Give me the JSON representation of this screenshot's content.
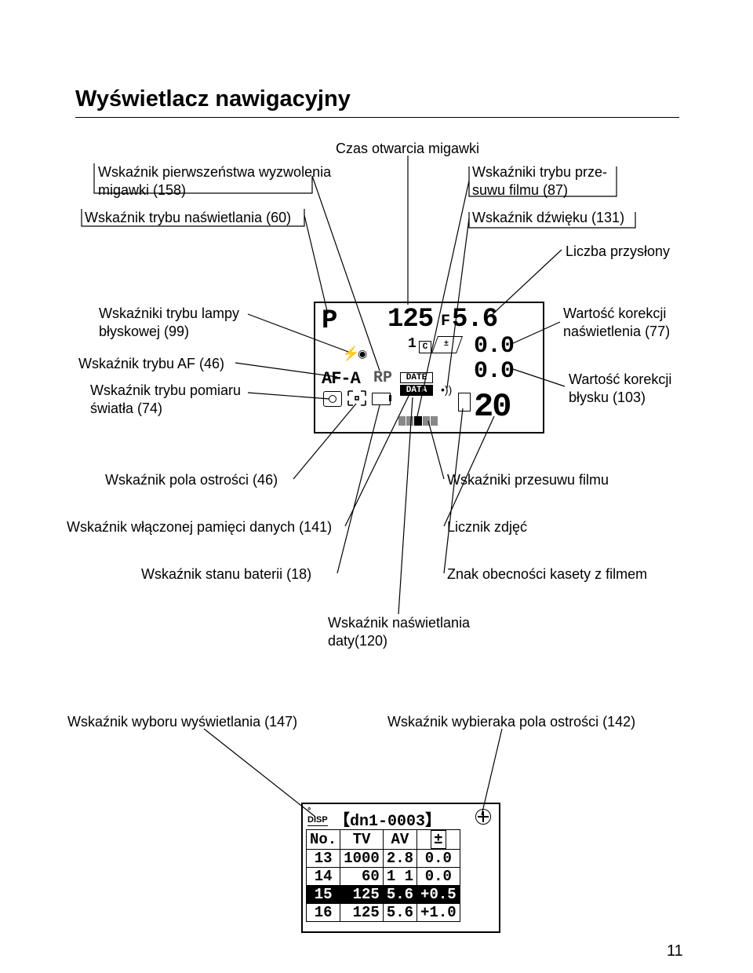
{
  "title": "Wyświetlacz nawigacyjny",
  "page_number": "11",
  "upper_labels": {
    "shutter_time": "Czas otwarcia migawki",
    "shutter_priority": "Wskaźnik pierwszeństwa wyzwolenia\nmigawki (158)",
    "exposure_mode": "Wskaźnik trybu naświetlania (60)",
    "film_advance": "Wskaźniki trybu prze-\nsuwu filmu (87)",
    "sound": "Wskaźnik dźwięku (131)",
    "aperture": "Liczba przysłony"
  },
  "left_labels": {
    "flash_mode": "Wskaźniki trybu lampy\nbłyskowej (99)",
    "af_mode": "Wskaźnik trybu AF (46)",
    "metering_mode": "Wskaźnik trybu pomiaru\nświatła (74)"
  },
  "right_labels": {
    "exp_corr": "Wartość korekcji\nnaświetlenia (77)",
    "flash_corr": "Wartość korekcji\nbłysku (103)"
  },
  "lower_labels": {
    "focus_field": "Wskaźnik pola ostrości (46)",
    "film_advance2": "Wskaźniki przesuwu filmu",
    "data_mem": "Wskaźnik włączonej pamięci danych (141)",
    "frame_counter": "Licznik zdjęć",
    "battery": "Wskaźnik stanu baterii (18)",
    "cassette": "Znak obecności kasety z filmem",
    "date_imprint": "Wskaźnik naświetlania\ndaty(120)"
  },
  "bottom_labels": {
    "display_select": "Wskaźnik wyboru wyświetlania (147)",
    "focus_selector": "Wskaźnik wybieraka pola ostrości (142)"
  },
  "lcd1": {
    "P": "P",
    "shutter": "125",
    "F": "F",
    "aperture": "5.6",
    "exp_corr": "0.0",
    "flash_corr": "0.0",
    "counter": "20",
    "af": "AF-A",
    "rp": "RP",
    "date1": "DATE",
    "date2": "DATA",
    "one": "1"
  },
  "lcd2": {
    "disp": "DISP",
    "title": "【dn1-0003】",
    "headers": [
      "No.",
      "TV",
      "AV",
      ""
    ],
    "rows": [
      [
        "13",
        "1000",
        "2.8",
        "0.0"
      ],
      [
        "14",
        "60",
        "1 1",
        "0.0"
      ],
      [
        "15",
        "125",
        "5.6",
        "+0.5"
      ],
      [
        "16",
        "125",
        "5.6",
        "+1.0"
      ]
    ],
    "inverse_row_index": 2
  },
  "lines": {
    "color": "#000000",
    "width": 1.2
  }
}
